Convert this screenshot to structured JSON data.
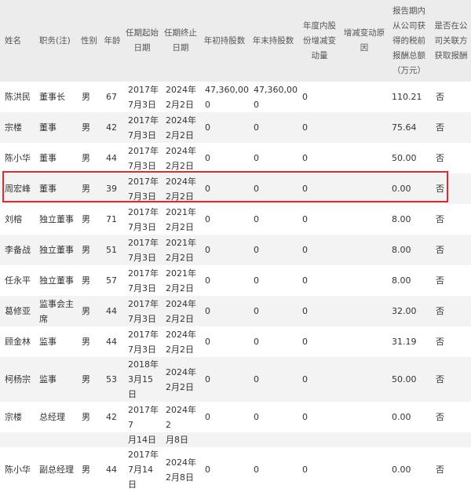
{
  "headers": [
    "姓名",
    "职务(注)",
    "性别",
    "年龄",
    "任期起始日期",
    "任期终止日期",
    "年初持股数",
    "年末持股数",
    "年度内股份增减变动量",
    "增减变动原因",
    "报告期内从公司获得的税前报酬总额（万元）",
    "是否在公司关联方获取报酬"
  ],
  "rows": [
    [
      "陈洪民",
      "董事长",
      "男",
      "67",
      "2017年7月3日",
      "2024年2月2日",
      "47,360,000",
      "47,360,000",
      "0",
      "",
      "110.21",
      "否"
    ],
    [
      "宗楼",
      "董事",
      "男",
      "42",
      "2017年7月3日",
      "2024年2月2日",
      "0",
      "0",
      "0",
      "",
      "75.64",
      "否"
    ],
    [
      "陈小华",
      "董事",
      "男",
      "44",
      "2017年7月3日",
      "2024年2月2日",
      "0",
      "0",
      "0",
      "",
      "50.00",
      "否"
    ],
    [
      "周宏峰",
      "董事",
      "男",
      "39",
      "2017年7月3日",
      "2024年2月2日",
      "0",
      "0",
      "0",
      "",
      "0.00",
      "否"
    ],
    [
      "刘榕",
      "独立董事",
      "男",
      "71",
      "2017年7月3日",
      "2021年2月2日",
      "0",
      "0",
      "0",
      "",
      "8.00",
      "否"
    ],
    [
      "李备战",
      "独立董事",
      "男",
      "51",
      "2017年7月3日",
      "2021年2月2日",
      "0",
      "0",
      "0",
      "",
      "8.00",
      "否"
    ],
    [
      "任永平",
      "独立董事",
      "男",
      "57",
      "2017年7月3日",
      "2021年2月2日",
      "0",
      "0",
      "0",
      "",
      "8.00",
      "否"
    ],
    [
      "葛修亚",
      "监事会主席",
      "男",
      "44",
      "2017年7月3日",
      "2024年2月2日",
      "0",
      "0",
      "0",
      "",
      "32.00",
      "否"
    ],
    [
      "顾金林",
      "监事",
      "男",
      "44",
      "2017年7月3日",
      "2024年2月2日",
      "0",
      "0",
      "0",
      "",
      "31.19",
      "否"
    ],
    [
      "柯杨宗",
      "监事",
      "男",
      "53",
      "2018年3月15日",
      "2024年2月2日",
      "0",
      "0",
      "0",
      "",
      "50.00",
      "否"
    ],
    [
      "宗楼",
      "总经理",
      "男",
      "42",
      "2017年7",
      "2024年2",
      "0",
      "0",
      "0",
      "",
      "0.00",
      "否"
    ],
    [
      "",
      "",
      "",
      "",
      "月14日",
      "月8日",
      "",
      "",
      "",
      "",
      "",
      ""
    ],
    [
      "陈小华",
      "副总经理",
      "男",
      "44",
      "2017年7月14日",
      "2024年2月8日",
      "0",
      "0",
      "0",
      "",
      "0.00",
      "否"
    ]
  ],
  "highlight_color": "#e0282e"
}
